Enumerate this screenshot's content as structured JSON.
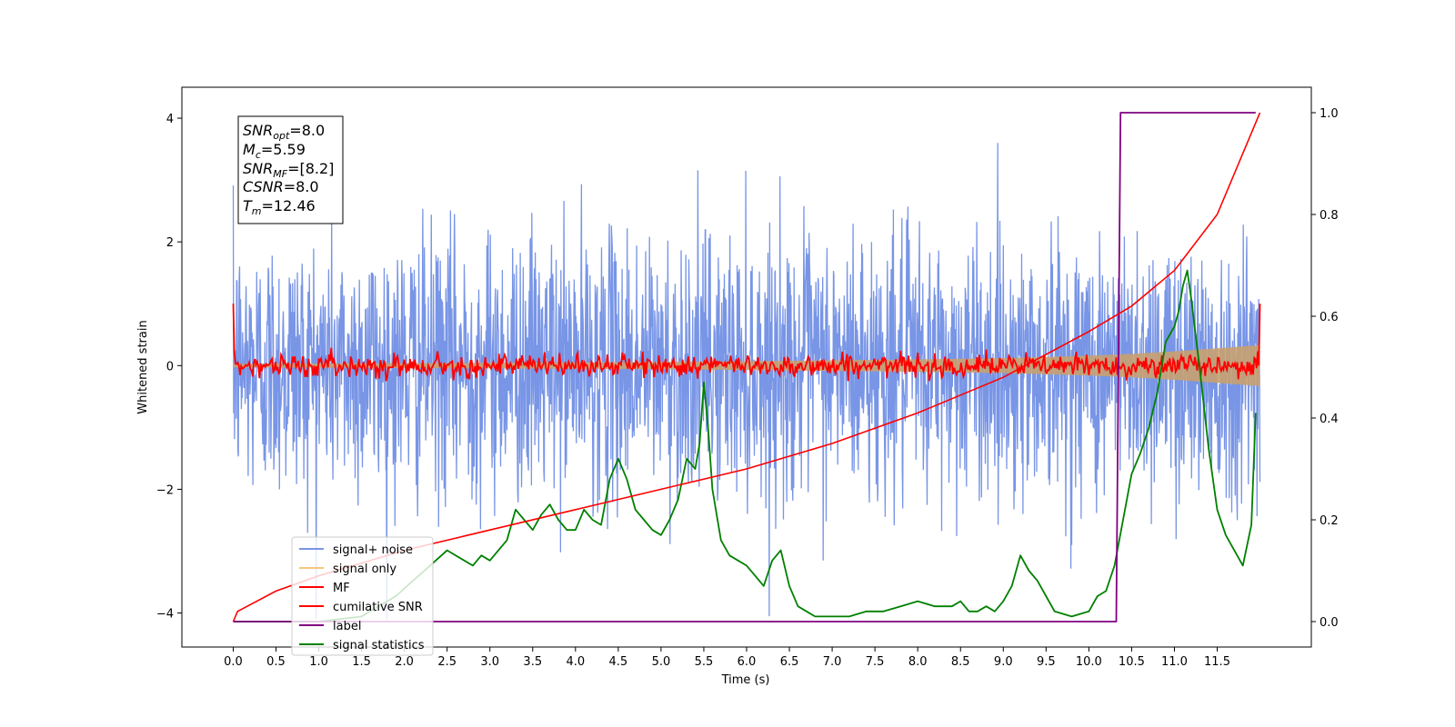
{
  "chart_data": {
    "type": "line",
    "xlabel": "Time (s)",
    "ylabel": "Whitened strain",
    "xlim": [
      -0.6,
      12.6
    ],
    "ylim": [
      -4.55,
      4.5
    ],
    "y2lim": [
      -0.05,
      1.05
    ],
    "xticks": [
      "0.0",
      "0.5",
      "1.0",
      "1.5",
      "2.0",
      "2.5",
      "3.0",
      "3.5",
      "4.0",
      "4.5",
      "5.0",
      "5.5",
      "6.0",
      "6.5",
      "7.0",
      "7.5",
      "8.0",
      "8.5",
      "9.0",
      "9.5",
      "10.0",
      "10.5",
      "11.0",
      "11.5"
    ],
    "yticks": [
      "4",
      "2",
      "0",
      "−2",
      "−4"
    ],
    "y2ticks": [
      "0.0",
      "0.2",
      "0.4",
      "0.6",
      "0.8",
      "1.0"
    ],
    "legend_position": "lower-left",
    "legend": [
      "signal+ noise",
      "signal only",
      "MF",
      "cumilative SNR",
      "label",
      "signal statistics"
    ],
    "annotation": {
      "line1_var": "SNR",
      "line1_sub": "opt",
      "line1_val": "=8.0",
      "line2_var": "M",
      "line2_sub": "c",
      "line2_val": "=5.59",
      "line3_var": "SNR",
      "line3_sub": "MF",
      "line3_val": "=[8.2]",
      "line4_var": "CSNR",
      "line4_val": "=8.0",
      "line5_var": "T",
      "line5_sub": "m",
      "line5_val": "=12.46"
    },
    "colors": {
      "noise": "#7895e6",
      "signal": "#f5c77e",
      "envelope": "#c8a070",
      "mf": "#ff0000",
      "csnr": "#ff0000",
      "label": "#800080",
      "stats": "#008000"
    },
    "series": [
      {
        "name": "signal+ noise",
        "axis": "left",
        "description": "noise band, roughly between -2 and +2, spikes to ±4",
        "std": 1.05,
        "range": [
          0,
          12
        ]
      },
      {
        "name": "signal only",
        "axis": "left",
        "envelope_x": [
          0,
          2,
          4,
          6,
          8,
          9,
          10,
          10.5,
          11,
          11.5,
          12
        ],
        "envelope_amp": [
          0.03,
          0.04,
          0.05,
          0.07,
          0.1,
          0.12,
          0.16,
          0.19,
          0.23,
          0.28,
          0.33
        ]
      },
      {
        "name": "MF",
        "axis": "left",
        "start": 1.0,
        "end": 1.0,
        "std": 0.09
      },
      {
        "name": "cumilative SNR",
        "axis": "right",
        "x": [
          0,
          0.05,
          0.5,
          1,
          2,
          3,
          4,
          5,
          6,
          7,
          8,
          9,
          10,
          10.5,
          11,
          11.5,
          12
        ],
        "y": [
          0.0,
          0.02,
          0.06,
          0.09,
          0.14,
          0.18,
          0.22,
          0.26,
          0.3,
          0.35,
          0.41,
          0.48,
          0.57,
          0.62,
          0.69,
          0.8,
          1.0
        ]
      },
      {
        "name": "label",
        "axis": "right",
        "x": [
          0,
          10.32,
          10.37,
          11.95
        ],
        "y": [
          0.0,
          0.0,
          1.0,
          1.0
        ]
      },
      {
        "name": "signal statistics",
        "axis": "right",
        "x": [
          0,
          1.0,
          1.5,
          1.9,
          2.1,
          2.3,
          2.5,
          2.7,
          2.8,
          2.9,
          3.0,
          3.1,
          3.2,
          3.3,
          3.4,
          3.5,
          3.6,
          3.7,
          3.8,
          3.9,
          4.0,
          4.1,
          4.2,
          4.3,
          4.4,
          4.5,
          4.6,
          4.7,
          4.8,
          4.9,
          5.0,
          5.1,
          5.2,
          5.3,
          5.4,
          5.45,
          5.5,
          5.55,
          5.6,
          5.7,
          5.8,
          5.9,
          6.0,
          6.1,
          6.2,
          6.3,
          6.4,
          6.5,
          6.6,
          6.7,
          6.8,
          7.0,
          7.2,
          7.4,
          7.6,
          7.8,
          8.0,
          8.2,
          8.4,
          8.5,
          8.6,
          8.7,
          8.8,
          8.9,
          9.0,
          9.1,
          9.2,
          9.3,
          9.4,
          9.5,
          9.6,
          9.8,
          10.0,
          10.1,
          10.2,
          10.3,
          10.4,
          10.5,
          10.6,
          10.7,
          10.8,
          10.9,
          11.0,
          11.05,
          11.1,
          11.15,
          11.2,
          11.3,
          11.4,
          11.5,
          11.6,
          11.7,
          11.8,
          11.9,
          11.95
        ],
        "y": [
          0.0,
          0.0,
          0.01,
          0.05,
          0.08,
          0.11,
          0.14,
          0.12,
          0.11,
          0.13,
          0.12,
          0.14,
          0.16,
          0.22,
          0.2,
          0.18,
          0.21,
          0.23,
          0.2,
          0.18,
          0.18,
          0.22,
          0.2,
          0.19,
          0.28,
          0.32,
          0.28,
          0.22,
          0.2,
          0.18,
          0.17,
          0.2,
          0.24,
          0.32,
          0.3,
          0.35,
          0.47,
          0.38,
          0.26,
          0.16,
          0.13,
          0.12,
          0.11,
          0.09,
          0.07,
          0.12,
          0.14,
          0.07,
          0.03,
          0.02,
          0.01,
          0.01,
          0.01,
          0.02,
          0.02,
          0.03,
          0.04,
          0.03,
          0.03,
          0.04,
          0.02,
          0.02,
          0.03,
          0.02,
          0.04,
          0.07,
          0.13,
          0.1,
          0.08,
          0.05,
          0.02,
          0.01,
          0.02,
          0.05,
          0.06,
          0.11,
          0.2,
          0.29,
          0.33,
          0.38,
          0.45,
          0.55,
          0.58,
          0.61,
          0.66,
          0.69,
          0.63,
          0.49,
          0.34,
          0.22,
          0.17,
          0.14,
          0.11,
          0.19,
          0.41
        ]
      }
    ]
  }
}
